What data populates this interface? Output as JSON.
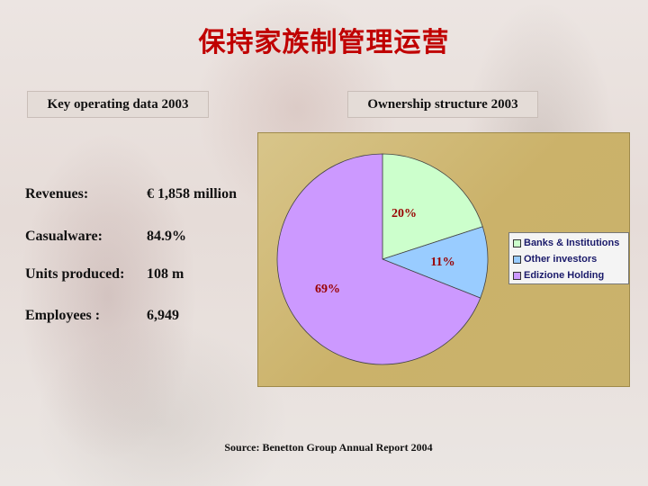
{
  "title": "保持家族制管理运营",
  "key_data": {
    "label": "Key operating data 2003",
    "rows": [
      {
        "key": "Revenues:",
        "value": "€ 1,858 million"
      },
      {
        "key": "Casualware:",
        "value": "84.9%"
      },
      {
        "key": "Units produced:",
        "value": "108 m"
      },
      {
        "key": "Employees :",
        "value": "6,949"
      }
    ]
  },
  "ownership_label": "Ownership structure 2003",
  "source": "Source: Benetton Group Annual Report 2004",
  "chart_data": {
    "type": "pie",
    "slices": [
      {
        "name": "Banks & Institutions",
        "value": 20,
        "label": "20%",
        "color": "#ccffcc"
      },
      {
        "name": "Other investors",
        "value": 11,
        "label": "11%",
        "color": "#99ccff"
      },
      {
        "name": "Edizione Holding",
        "value": 69,
        "label": "69%",
        "color": "#cc99ff"
      }
    ],
    "start_angle_deg": 0,
    "label_color": "#990000",
    "legend_position": "right"
  }
}
